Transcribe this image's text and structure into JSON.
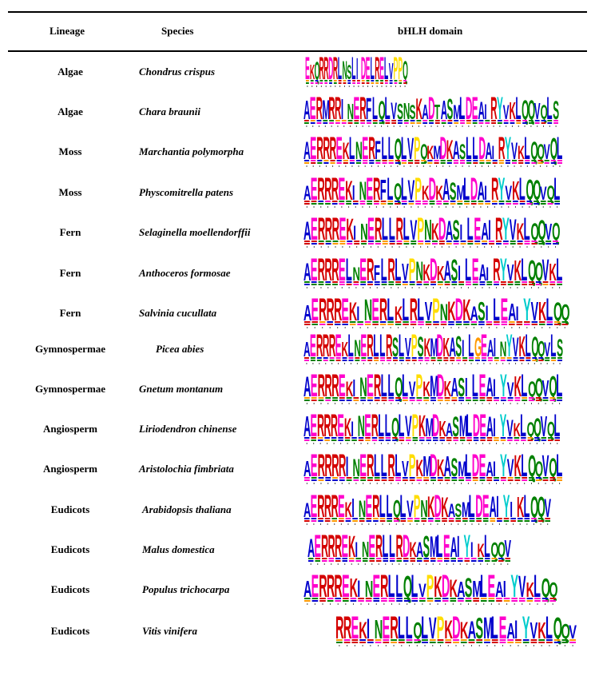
{
  "table": {
    "headers": {
      "lineage": "Lineage",
      "species": "Species",
      "domain": "bHLH domain"
    },
    "rows": [
      {
        "lineage": "Algae",
        "species": "Chondrus crispus",
        "logo": "EKQRRDRLNSLIDELRELVPPQ"
      },
      {
        "lineage": "Algae",
        "species": "Chara braunii",
        "logo": "AERMRRINERFLQLVSNSKADTASMLDEAIRYVKLQQVQLS"
      },
      {
        "lineage": "Moss",
        "species": "Marchantia polymorpha",
        "logo": "AERRREKLNERFLLQLVPQKMDKASLLDAIRYVKLQQVQL"
      },
      {
        "lineage": "Moss",
        "species": "Physcomitrella patens",
        "logo": "AERRREKINERFLQLVPKDKASMLDAIRYVKLQQVQL"
      },
      {
        "lineage": "Fern",
        "species": "Selaginella moellendorffii",
        "logo": "AERRREKINERLLRLVPNKDASILEAIRYVKLQQVQ"
      },
      {
        "lineage": "Fern",
        "species": "Anthoceros formosae",
        "logo": "AERRRELNERFLRLVPNKDKASILEAIRYVKLQQVKL"
      },
      {
        "lineage": "Fern",
        "species": "Salvinia cucullata",
        "logo": "AERRREKINERLKLRLVPNKDKASILEAIYVKLQQ"
      },
      {
        "lineage": "Gymnospermae",
        "species": "Picea abies",
        "logo": "AERRREKLNERLLRSLVPSKMDKASILGEAINYVKLQQVLS"
      },
      {
        "lineage": "Gymnospermae",
        "species": "Gnetum montanum",
        "logo": "AERRREKINERLLQLVPKMDKASILEAIYVKLQQVQL"
      },
      {
        "lineage": "Angiosperm",
        "species": "Liriodendron chinense",
        "logo": "AERRREKINERLLQLVPKMDKASMLDEAIYVKLQQVQL"
      },
      {
        "lineage": "Angiosperm",
        "species": "Aristolochia fimbriata",
        "logo": "AERRRRINERLLRLVPKMDKASMLDEAIYVKLQQVQL"
      },
      {
        "lineage": "Eudicots",
        "species": "Arabidopsis thaliana",
        "logo": "AERRREKINERLLQLVPNKDKASMLDEAIYIKLQQV"
      },
      {
        "lineage": "Eudicots",
        "species": "Malus domestica",
        "logo": "AERRREKINERLLRDKASMLEAIYIKLQQV"
      },
      {
        "lineage": "Eudicots",
        "species": "Populus trichocarpa",
        "logo": "AERRREKINERLLQLVPKDKASMLEAIYVKLQQ"
      },
      {
        "lineage": "Eudicots",
        "species": "Vitis vinifera",
        "logo": "RREKINERLLQLVPKDKASMLEAIYVKLQQV"
      }
    ]
  },
  "colors": {
    "basic": "#d40000",
    "acidic": "#ff00cc",
    "hydrophobic": "#0000cc",
    "polar": "#008000",
    "proline": "#ffdd00",
    "aromatic": "#00cccc",
    "glycine": "#ff9900"
  }
}
